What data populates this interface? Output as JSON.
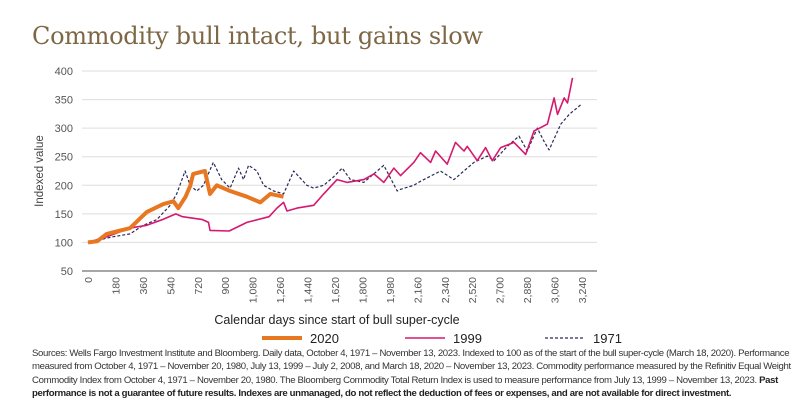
{
  "chart_data": {
    "type": "line",
    "title": "Commodity bull intact, but gains slow",
    "xlabel": "Calendar days since start of bull super-cycle",
    "ylabel": "Indexed value",
    "xlim": [
      0,
      3240
    ],
    "ylim": [
      50,
      400
    ],
    "yticks": [
      "50",
      "100",
      "150",
      "200",
      "250",
      "300",
      "350",
      "400"
    ],
    "xticks": [
      "0",
      "180",
      "360",
      "540",
      "720",
      "900",
      "1,080",
      "1,260",
      "1,440",
      "1,620",
      "1,800",
      "1,980",
      "2,160",
      "2,340",
      "2,520",
      "2,700",
      "2,880",
      "3,060",
      "3,240"
    ],
    "grid": true,
    "legend_position": "bottom",
    "series": [
      {
        "name": "2020",
        "color": "#e87722",
        "style": "solid-thick",
        "points": [
          [
            0,
            100
          ],
          [
            60,
            102
          ],
          [
            123,
            115
          ],
          [
            200,
            120
          ],
          [
            276,
            125
          ],
          [
            385,
            153
          ],
          [
            494,
            167
          ],
          [
            560,
            172
          ],
          [
            592,
            160
          ],
          [
            640,
            180
          ],
          [
            670,
            199
          ],
          [
            690,
            220
          ],
          [
            767,
            225
          ],
          [
            800,
            185
          ],
          [
            845,
            200
          ],
          [
            932,
            190
          ],
          [
            1042,
            180
          ],
          [
            1130,
            170
          ],
          [
            1196,
            185
          ],
          [
            1282,
            180
          ]
        ]
      },
      {
        "name": "1999",
        "color": "#d6186f",
        "style": "solid",
        "points": [
          [
            0,
            100
          ],
          [
            123,
            110
          ],
          [
            276,
            125
          ],
          [
            385,
            130
          ],
          [
            488,
            140
          ],
          [
            576,
            150
          ],
          [
            620,
            145
          ],
          [
            751,
            140
          ],
          [
            790,
            135
          ],
          [
            800,
            121
          ],
          [
            926,
            120
          ],
          [
            1042,
            135
          ],
          [
            1188,
            145
          ],
          [
            1239,
            160
          ],
          [
            1283,
            170
          ],
          [
            1305,
            155
          ],
          [
            1371,
            160
          ],
          [
            1480,
            165
          ],
          [
            1546,
            185
          ],
          [
            1634,
            210
          ],
          [
            1699,
            205
          ],
          [
            1809,
            210
          ],
          [
            1875,
            220
          ],
          [
            1940,
            205
          ],
          [
            2006,
            230
          ],
          [
            2050,
            217
          ],
          [
            2137,
            240
          ],
          [
            2181,
            257
          ],
          [
            2247,
            240
          ],
          [
            2280,
            260
          ],
          [
            2356,
            237
          ],
          [
            2410,
            275
          ],
          [
            2466,
            260
          ],
          [
            2488,
            268
          ],
          [
            2553,
            243
          ],
          [
            2608,
            266
          ],
          [
            2652,
            243
          ],
          [
            2707,
            266
          ],
          [
            2794,
            275
          ],
          [
            2871,
            254
          ],
          [
            2925,
            295
          ],
          [
            3013,
            307
          ],
          [
            3057,
            353
          ],
          [
            3079,
            324
          ],
          [
            3123,
            353
          ],
          [
            3145,
            344
          ],
          [
            3178,
            388
          ]
        ]
      },
      {
        "name": "1971",
        "color": "#2a2a5a",
        "style": "dashed",
        "points": [
          [
            0,
            100
          ],
          [
            166,
            110
          ],
          [
            276,
            115
          ],
          [
            363,
            130
          ],
          [
            451,
            140
          ],
          [
            539,
            165
          ],
          [
            582,
            185
          ],
          [
            637,
            225
          ],
          [
            670,
            200
          ],
          [
            713,
            190
          ],
          [
            757,
            200
          ],
          [
            822,
            240
          ],
          [
            877,
            210
          ],
          [
            932,
            195
          ],
          [
            987,
            230
          ],
          [
            1020,
            210
          ],
          [
            1053,
            235
          ],
          [
            1108,
            225
          ],
          [
            1152,
            200
          ],
          [
            1218,
            190
          ],
          [
            1283,
            185
          ],
          [
            1349,
            225
          ],
          [
            1436,
            200
          ],
          [
            1480,
            195
          ],
          [
            1546,
            200
          ],
          [
            1612,
            215
          ],
          [
            1667,
            230
          ],
          [
            1721,
            210
          ],
          [
            1809,
            205
          ],
          [
            1940,
            235
          ],
          [
            2028,
            190
          ],
          [
            2050,
            193
          ],
          [
            2137,
            200
          ],
          [
            2181,
            207
          ],
          [
            2312,
            225
          ],
          [
            2400,
            210
          ],
          [
            2531,
            240
          ],
          [
            2619,
            251
          ],
          [
            2663,
            243
          ],
          [
            2750,
            268
          ],
          [
            2827,
            286
          ],
          [
            2881,
            260
          ],
          [
            2947,
            300
          ],
          [
            2991,
            277
          ],
          [
            3024,
            262
          ],
          [
            3101,
            307
          ],
          [
            3156,
            324
          ],
          [
            3233,
            341
          ]
        ]
      }
    ]
  },
  "footnote": {
    "sources": "Sources: Wells Fargo Investment Institute and Bloomberg. Daily data, October 4, 1971 – November 13, 2023. Indexed to 100 as of the start of the bull super-cycle (March 18, 2020). Performance measured from October 4, 1971 – November 20, 1980, July 13, 1999 – July 2, 2008, and March 18, 2020 – November 13, 2023. Commodity performance measured by the Refinitiv Equal Weight Commodity Index from October 4, 1971 – November 20, 1980. The Bloomberg Commodity Total Return Index is used to measure performance from July 13, 1999 – November 13, 2023.",
    "disclaimer": "Past performance is not a guarantee of future results. Indexes are unmanaged, do not reflect the deduction of fees or expenses, and are not available for direct investment."
  }
}
